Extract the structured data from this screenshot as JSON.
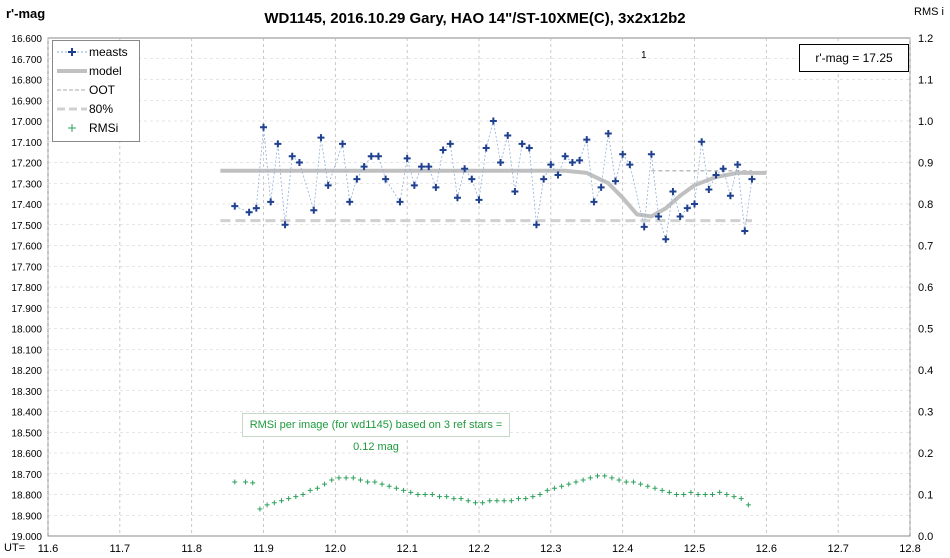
{
  "chart_data": {
    "type": "scatter",
    "title": "WD1145,  2016.10.29  Gary, HAO  14\"/ST-10XME(C),  3x2x12b2",
    "ylabel": "r'-mag",
    "y2label": "RMS i",
    "xlabel_prefix": "UT=",
    "xlim": [
      11.6,
      12.8
    ],
    "ylim": [
      16.6,
      19.0
    ],
    "y2lim": [
      0.0,
      1.2
    ],
    "x_ticks": [
      "11.6",
      "11.7",
      "11.8",
      "11.9",
      "12.0",
      "12.1",
      "12.2",
      "12.3",
      "12.4",
      "12.5",
      "12.6",
      "12.7",
      "12.8"
    ],
    "y_ticks": [
      "16.600",
      "16.700",
      "16.800",
      "16.900",
      "17.000",
      "17.100",
      "17.200",
      "17.300",
      "17.400",
      "17.500",
      "17.600",
      "17.700",
      "17.800",
      "17.900",
      "18.000",
      "18.100",
      "18.200",
      "18.300",
      "18.400",
      "18.500",
      "18.600",
      "18.700",
      "18.800",
      "18.900",
      "19.000"
    ],
    "y2_ticks": [
      "1.2",
      "1.1",
      "1.0",
      "0.9",
      "0.8",
      "0.7",
      "0.6",
      "0.5",
      "0.4",
      "0.3",
      "0.2",
      "0.1",
      "0.0"
    ],
    "grid": true,
    "legend": "top-left",
    "legend_labels": [
      "measts",
      "model",
      "OOT",
      "80%",
      "RMSi"
    ],
    "annotation_box": "r'-mag = 17.25",
    "rms_note": "RMSi per image (for wd1145) based on 3 ref stars = 0.12 mag",
    "marker_label": "1",
    "series": [
      {
        "name": "measts",
        "color": "#1f3f8f",
        "x": [
          11.86,
          11.88,
          11.89,
          11.9,
          11.91,
          11.92,
          11.93,
          11.94,
          11.95,
          11.97,
          11.98,
          11.99,
          12.01,
          12.02,
          12.03,
          12.04,
          12.05,
          12.06,
          12.07,
          12.09,
          12.1,
          12.11,
          12.12,
          12.13,
          12.14,
          12.15,
          12.16,
          12.17,
          12.18,
          12.19,
          12.2,
          12.21,
          12.22,
          12.23,
          12.24,
          12.25,
          12.26,
          12.27,
          12.28,
          12.29,
          12.3,
          12.31,
          12.32,
          12.33,
          12.34,
          12.35,
          12.36,
          12.37,
          12.38,
          12.39,
          12.4,
          12.41,
          12.43,
          12.44,
          12.45,
          12.46,
          12.47,
          12.48,
          12.49,
          12.5,
          12.51,
          12.52,
          12.53,
          12.54,
          12.55,
          12.56,
          12.57,
          12.58
        ],
        "y": [
          17.41,
          17.44,
          17.42,
          17.03,
          17.39,
          17.11,
          17.5,
          17.17,
          17.2,
          17.43,
          17.08,
          17.31,
          17.11,
          17.39,
          17.28,
          17.22,
          17.17,
          17.17,
          17.28,
          17.39,
          17.18,
          17.31,
          17.22,
          17.22,
          17.32,
          17.14,
          17.11,
          17.37,
          17.23,
          17.28,
          17.38,
          17.13,
          17.0,
          17.2,
          17.07,
          17.34,
          17.11,
          17.13,
          17.5,
          17.28,
          17.21,
          17.26,
          17.17,
          17.2,
          17.19,
          17.09,
          17.39,
          17.32,
          17.06,
          17.29,
          17.16,
          17.21,
          17.51,
          17.16,
          17.46,
          17.57,
          17.34,
          17.46,
          17.42,
          17.4,
          17.1,
          17.33,
          17.26,
          17.23,
          17.36,
          17.21,
          17.53,
          17.28
        ],
        "style": "dotted-line-with-plus"
      },
      {
        "name": "model",
        "color": "#c0c0c0",
        "x": [
          11.84,
          12.32,
          12.35,
          12.38,
          12.4,
          12.42,
          12.44,
          12.46,
          12.48,
          12.5,
          12.53,
          12.56,
          12.6
        ],
        "y": [
          17.24,
          17.24,
          17.25,
          17.3,
          17.37,
          17.45,
          17.46,
          17.42,
          17.36,
          17.31,
          17.27,
          17.25,
          17.25
        ],
        "style": "thick-line"
      },
      {
        "name": "OOT",
        "color": "#b0b0b0",
        "x": [
          12.44,
          12.58
        ],
        "y": [
          17.24,
          17.24
        ],
        "style": "dashed-thin"
      },
      {
        "name": "80%",
        "color": "#d0d0d0",
        "x": [
          11.84,
          12.58
        ],
        "y": [
          17.48,
          17.48
        ],
        "style": "dashed-thick"
      },
      {
        "name": "RMSi",
        "color": "#2ca05a",
        "axis": "right",
        "x": [
          11.86,
          11.875,
          11.885,
          11.895,
          11.905,
          11.915,
          11.925,
          11.935,
          11.945,
          11.955,
          11.965,
          11.975,
          11.985,
          11.995,
          12.005,
          12.015,
          12.025,
          12.035,
          12.045,
          12.055,
          12.065,
          12.075,
          12.085,
          12.095,
          12.105,
          12.115,
          12.125,
          12.135,
          12.145,
          12.155,
          12.165,
          12.175,
          12.185,
          12.195,
          12.205,
          12.215,
          12.225,
          12.235,
          12.245,
          12.255,
          12.265,
          12.275,
          12.285,
          12.295,
          12.305,
          12.315,
          12.325,
          12.335,
          12.345,
          12.355,
          12.365,
          12.375,
          12.385,
          12.395,
          12.405,
          12.415,
          12.425,
          12.435,
          12.445,
          12.455,
          12.465,
          12.475,
          12.485,
          12.495,
          12.505,
          12.515,
          12.525,
          12.535,
          12.545,
          12.555,
          12.565,
          12.575
        ],
        "y": [
          0.13,
          0.13,
          0.128,
          0.065,
          0.075,
          0.08,
          0.085,
          0.09,
          0.095,
          0.1,
          0.11,
          0.115,
          0.125,
          0.135,
          0.14,
          0.14,
          0.14,
          0.135,
          0.13,
          0.13,
          0.125,
          0.12,
          0.115,
          0.11,
          0.105,
          0.1,
          0.1,
          0.1,
          0.095,
          0.095,
          0.09,
          0.09,
          0.085,
          0.08,
          0.08,
          0.085,
          0.085,
          0.085,
          0.085,
          0.09,
          0.09,
          0.095,
          0.1,
          0.11,
          0.115,
          0.12,
          0.125,
          0.13,
          0.135,
          0.14,
          0.145,
          0.145,
          0.14,
          0.135,
          0.13,
          0.13,
          0.125,
          0.12,
          0.115,
          0.11,
          0.105,
          0.1,
          0.1,
          0.105,
          0.1,
          0.1,
          0.1,
          0.105,
          0.1,
          0.095,
          0.09,
          0.075
        ],
        "style": "plus-markers"
      }
    ]
  }
}
